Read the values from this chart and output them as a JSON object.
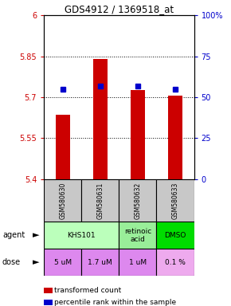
{
  "title": "GDS4912 / 1369518_at",
  "samples": [
    "GSM580630",
    "GSM580631",
    "GSM580632",
    "GSM580633"
  ],
  "bar_values": [
    5.635,
    5.84,
    5.725,
    5.705
  ],
  "percentile_values": [
    55,
    57,
    57,
    55
  ],
  "ylim": [
    5.4,
    6.0
  ],
  "yticks_left": [
    5.4,
    5.55,
    5.7,
    5.85,
    6.0
  ],
  "yticks_right": [
    0,
    25,
    50,
    75,
    100
  ],
  "ytick_labels_left": [
    "5.4",
    "5.55",
    "5.7",
    "5.85",
    "6"
  ],
  "ytick_labels_right": [
    "0",
    "25",
    "50",
    "75",
    "100%"
  ],
  "hlines": [
    5.55,
    5.7,
    5.85
  ],
  "bar_color": "#cc0000",
  "dot_color": "#0000cc",
  "sample_bg_color": "#c8c8c8",
  "bar_bottom": 5.4,
  "agent_data": [
    {
      "cols": [
        0,
        1
      ],
      "text": "KHS101",
      "color": "#bbffbb"
    },
    {
      "cols": [
        2,
        2
      ],
      "text": "retinoic\nacid",
      "color": "#99ee99"
    },
    {
      "cols": [
        3,
        3
      ],
      "text": "DMSO",
      "color": "#00dd00"
    }
  ],
  "dose_data": [
    {
      "col": 0,
      "text": "5 uM",
      "color": "#dd88ee"
    },
    {
      "col": 1,
      "text": "1.7 uM",
      "color": "#dd88ee"
    },
    {
      "col": 2,
      "text": "1 uM",
      "color": "#dd88ee"
    },
    {
      "col": 3,
      "text": "0.1 %",
      "color": "#eeaaee"
    }
  ],
  "legend_red": "transformed count",
  "legend_blue": "percentile rank within the sample",
  "agent_row_label": "agent",
  "dose_row_label": "dose"
}
